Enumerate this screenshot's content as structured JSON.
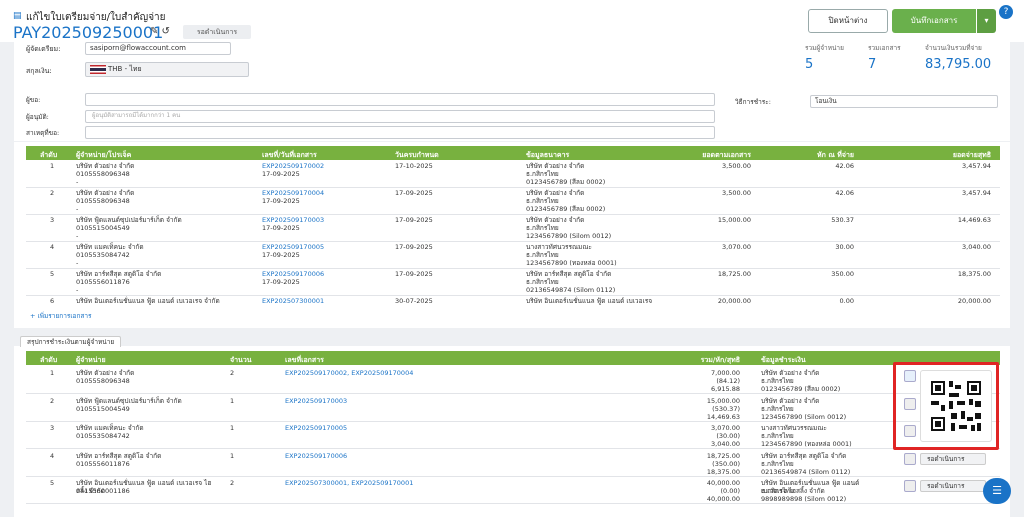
{
  "header": {
    "title": "แก้ไขใบเตรียมจ่าย/ใบสำคัญจ่าย",
    "doc_no": "PAY202509250001",
    "status": "รอดำเนินการ",
    "close_button": "ปิดหน้าต่าง",
    "save_button": "บันทึกเอกสาร"
  },
  "form": {
    "preparer_label": "ผู้จัดเตรียม:",
    "preparer": "sasiporn@flowaccount.com",
    "currency_label": "สกุลเงิน:",
    "currency": "THB - ไทย",
    "requester_label": "ผู้ขอ:",
    "approver_label": "ผู้อนุมัติ:",
    "approver_placeholder": "ผู้อนุมัติสามารถมีได้มากกว่า 1 คน",
    "reason_label": "สาเหตุที่ขอ:",
    "payment_method_label": "วิธีการชำระ:",
    "payment_method": "โอนเงิน"
  },
  "summary": [
    {
      "label": "รวมผู้จำหน่าย",
      "value": "5"
    },
    {
      "label": "รวมเอกสาร",
      "value": "7"
    },
    {
      "label": "จำนวนเงินรวมที่จ่าย",
      "value": "83,795.00"
    }
  ],
  "documents": {
    "columns": [
      "ลำดับ",
      "ผู้จำหน่าย/โปรเจ็ค",
      "เลขที่/วันที่เอกสาร",
      "วันครบกำหนด",
      "ข้อมูลธนาคาร",
      "ยอดตามเอกสาร",
      "หัก ณ ที่จ่าย",
      "ยอดจ่ายสุทธิ"
    ],
    "rows": [
      {
        "no": "1",
        "vendor": [
          "บริษัท ตัวอย่าง จำกัด",
          "0105558096348",
          "-"
        ],
        "doc": [
          "EXP202509170002",
          "17-09-2025"
        ],
        "due": "17-10-2025",
        "bank": [
          "บริษัท ตัวอย่าง จำกัด",
          "ธ.กสิกรไทย",
          "0123456789 (สีลม 0002)"
        ],
        "amount": "3,500.00",
        "wht": "42.06",
        "net": "3,457.94"
      },
      {
        "no": "2",
        "vendor": [
          "บริษัท ตัวอย่าง จำกัด",
          "0105558096348",
          "-"
        ],
        "doc": [
          "EXP202509170004",
          "17-09-2025"
        ],
        "due": "17-09-2025",
        "bank": [
          "บริษัท ตัวอย่าง จำกัด",
          "ธ.กสิกรไทย",
          "0123456789 (สีลม 0002)"
        ],
        "amount": "3,500.00",
        "wht": "42.06",
        "net": "3,457.94"
      },
      {
        "no": "3",
        "vendor": [
          "บริษัท ฟู้ดแลนด์ซุปเปอร์มาร์เก็ต จำกัด",
          "0105515004549",
          "-"
        ],
        "doc": [
          "EXP202509170003",
          "17-09-2025"
        ],
        "due": "17-09-2025",
        "bank": [
          "บริษัท ตัวอย่าง จำกัด",
          "ธ.กสิกรไทย",
          "1234567890 (Silom 0012)"
        ],
        "amount": "15,000.00",
        "wht": "530.37",
        "net": "14,469.63"
      },
      {
        "no": "4",
        "vendor": [
          "บริษัท แมคเท็คนะ จำกัด",
          "0105535084742",
          "-"
        ],
        "doc": [
          "EXP202509170005",
          "17-09-2025"
        ],
        "due": "17-09-2025",
        "bank": [
          "นางสาวทัศนวรรณมณะ",
          "ธ.กสิกรไทย",
          "1234567890 (ทองหล่อ 0001)"
        ],
        "amount": "3,070.00",
        "wht": "30.00",
        "net": "3,040.00"
      },
      {
        "no": "5",
        "vendor": [
          "บริษัท อาร์ทสีสุด สตูดิโอ จำกัด",
          "0105556011876",
          "-"
        ],
        "doc": [
          "EXP202509170006",
          "17-09-2025"
        ],
        "due": "17-09-2025",
        "bank": [
          "บริษัท อาร์ทสีสุด สตูดิโอ จำกัด",
          "ธ.กสิกรไทย",
          "02136549874 (Silom 0112)"
        ],
        "amount": "18,725.00",
        "wht": "350.00",
        "net": "18,375.00"
      },
      {
        "no": "6",
        "vendor": [
          "บริษัท อินเตอร์เนชั่นแนล ฟู้ด แอนด์ เบเวอเรจ จำกัด"
        ],
        "doc": [
          "EXP202507300001"
        ],
        "due": "30-07-2025",
        "bank": [
          "บริษัท อินเตอร์เนชั่นแนล ฟู้ด แอนด์ เบเวอเรจ"
        ],
        "amount": "20,000.00",
        "wht": "0.00",
        "net": "20,000.00"
      }
    ]
  },
  "add_document": "+ เพิ่มรายการเอกสาร",
  "vendor_summary": {
    "tab": "สรุปการชำระเงินตามผู้จำหน่าย",
    "columns": [
      "ลำดับ",
      "ผู้จำหน่าย",
      "จำนวน",
      "เลขที่เอกสาร",
      "รวม/หัก/สุทธิ",
      "ข้อมูลชำระเงิน"
    ],
    "rows": [
      {
        "no": "1",
        "vendor": [
          "บริษัท ตัวอย่าง จำกัด",
          "0105558096348"
        ],
        "count": "2",
        "docs": "EXP202509170002, EXP202509170004",
        "totals": [
          "7,000.00",
          "(84.12)",
          "6,915.88"
        ],
        "payment": [
          "บริษัท ตัวอย่าง จำกัด",
          "ธ.กสิกรไทย",
          "0123456789 (สีลม 0002)"
        ]
      },
      {
        "no": "2",
        "vendor": [
          "บริษัท ฟู้ดแลนด์ซุปเปอร์มาร์เก็ต จำกัด",
          "0105515004549"
        ],
        "count": "1",
        "docs": "EXP202509170003",
        "totals": [
          "15,000.00",
          "(530.37)",
          "14,469.63"
        ],
        "payment": [
          "บริษัท ตัวอย่าง จำกัด",
          "ธ.กสิกรไทย",
          "1234567890 (Silom 0012)"
        ]
      },
      {
        "no": "3",
        "vendor": [
          "บริษัท แมคเท็คนะ จำกัด",
          "0105535084742"
        ],
        "count": "1",
        "docs": "EXP202509170005",
        "totals": [
          "3,070.00",
          "(30.00)",
          "3,040.00"
        ],
        "payment": [
          "นางสาวทัศนวรรณมณะ",
          "ธ.กสิกรไทย",
          "1234567890 (ทองหล่อ 0001)"
        ]
      },
      {
        "no": "4",
        "vendor": [
          "บริษัท อาร์ทสีสุด สตูดิโอ จำกัด",
          "0105556011876"
        ],
        "count": "1",
        "docs": "EXP202509170006",
        "totals": [
          "18,725.00",
          "(350.00)",
          "18,375.00"
        ],
        "payment": [
          "บริษัท อาร์ทสีสุด สตูดิโอ จำกัด",
          "ธ.กสิกรไทย",
          "02136549874 (Silom 0112)"
        ],
        "status": "รอดำเนินการ"
      },
      {
        "no": "5",
        "vendor": [
          "บริษัท อินเตอร์เนชั่นแนล ฟู้ด แอนด์ เบเวอเรจ ไฮสลิ้ง จำกัด",
          "0415560001186"
        ],
        "count": "2",
        "docs": "EXP202507300001, EXP202509170001",
        "totals": [
          "40,000.00",
          "(0.00)",
          "40,000.00"
        ],
        "payment": [
          "บริษัท อินเตอร์เนชั่นแนล ฟู้ด แอนด์ เบเวอเรจ ไฮสลิ้ง จำกัด",
          "ธ.กสิกรไทย",
          "9898989898 (Silom 0012)"
        ],
        "status": "รอดำเนินการ"
      }
    ]
  }
}
